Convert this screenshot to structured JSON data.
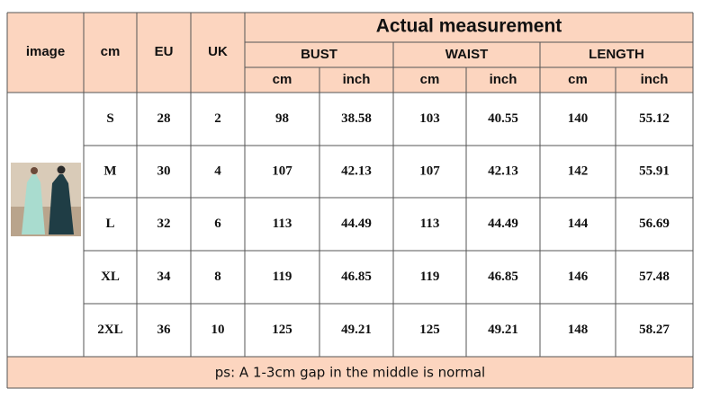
{
  "header": {
    "columns": [
      "image",
      "cm",
      "EU",
      "UK"
    ],
    "group_title": "Actual measurement",
    "groups": [
      "BUST",
      "WAIST",
      "LENGTH"
    ],
    "units": [
      "cm",
      "inch",
      "cm",
      "inch",
      "cm",
      "inch"
    ]
  },
  "table": {
    "rows": [
      [
        "S",
        28,
        2,
        98,
        38.58,
        103,
        40.55,
        140,
        55.12
      ],
      [
        "M",
        30,
        4,
        107,
        42.13,
        107,
        42.13,
        142,
        55.91
      ],
      [
        "L",
        32,
        6,
        113,
        44.49,
        113,
        44.49,
        144,
        56.69
      ],
      [
        "XL",
        34,
        8,
        119,
        46.85,
        119,
        46.85,
        146,
        57.48
      ],
      [
        "2XL",
        36,
        10,
        125,
        49.21,
        125,
        49.21,
        148,
        58.27
      ]
    ]
  },
  "footer": {
    "note": "ps: A 1-3cm gap in the middle is normal"
  }
}
